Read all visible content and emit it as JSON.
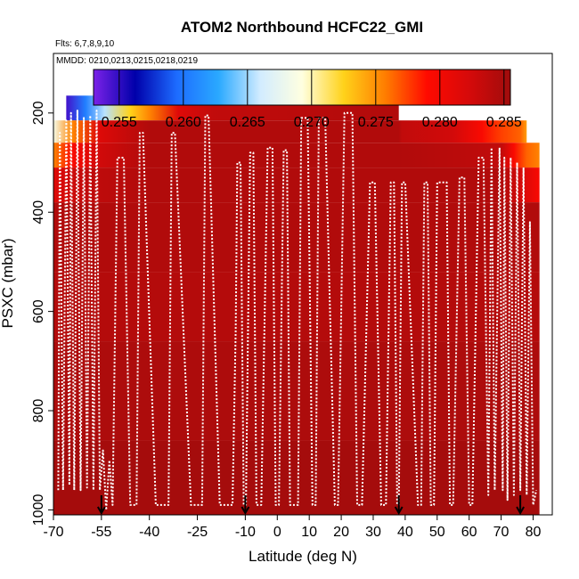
{
  "chart_data": {
    "type": "heatmap",
    "title": "ATOM2 Northbound HCFC22_GMI",
    "subtitle": "Flts: 6,7,8,9,10",
    "annotation": "MMDD: 0210,0213,0215,0218,0219",
    "xlabel": "Latitude (deg N)",
    "ylabel": "PSXC (mbar)",
    "xlim": [
      -70,
      86
    ],
    "ylim": [
      1010,
      80
    ],
    "y_reversed": true,
    "xticks": [
      -70,
      -55,
      -40,
      -25,
      -10,
      0,
      10,
      20,
      30,
      40,
      50,
      60,
      70,
      80
    ],
    "xtick_labels": [
      "-70",
      "-55",
      "-40",
      "-25",
      "-10",
      "0",
      "10",
      "20",
      "30",
      "40",
      "50",
      "60",
      "70",
      "80"
    ],
    "yticks": [
      200,
      400,
      600,
      800,
      1000
    ],
    "ytick_labels": [
      "200",
      "400",
      "600",
      "800",
      "1000"
    ],
    "colorbar": {
      "min": 0.253,
      "max": 0.2855,
      "ticks": [
        0.255,
        0.26,
        0.265,
        0.27,
        0.275,
        0.28,
        0.285
      ],
      "tick_labels": [
        "0.255",
        "0.260",
        "0.265",
        "0.270",
        "0.275",
        "0.280",
        "0.285"
      ],
      "colors": [
        "#7b22e8",
        "#0000aa",
        "#1d6cff",
        "#2aa9ff",
        "#d2ecff",
        "#ffffe0",
        "#ffd21a",
        "#ff7d00",
        "#ff0a00",
        "#d60a0a",
        "#a00c0c"
      ]
    },
    "panels": [
      {
        "x": [
          -66,
          38
        ],
        "p": [
          165,
          215
        ],
        "gradient": [
          [
            -66,
            0.2545
          ],
          [
            -60,
            0.2605
          ],
          [
            -54,
            0.2655
          ],
          [
            -46,
            0.2725
          ],
          [
            -40,
            0.2755
          ],
          [
            -31,
            0.2815
          ],
          [
            -20,
            0.2835
          ],
          [
            38,
            0.2845
          ]
        ]
      },
      {
        "x": [
          -70,
          78
        ],
        "p": [
          215,
          260
        ],
        "gradient": [
          [
            -70,
            0.2685
          ],
          [
            -64,
            0.2755
          ],
          [
            -56,
            0.2815
          ],
          [
            -40,
            0.2845
          ],
          [
            38,
            0.2845
          ],
          [
            39,
            0.2835
          ],
          [
            55,
            0.2825
          ],
          [
            64,
            0.2795
          ],
          [
            70,
            0.2775
          ],
          [
            76,
            0.2765
          ],
          [
            78,
            0.2745
          ]
        ]
      },
      {
        "x": [
          -70,
          82
        ],
        "p": [
          260,
          310
        ],
        "gradient": [
          [
            -70,
            0.2755
          ],
          [
            -64,
            0.2795
          ],
          [
            -56,
            0.2825
          ],
          [
            -40,
            0.2845
          ],
          [
            38,
            0.2845
          ],
          [
            70,
            0.2835
          ],
          [
            74,
            0.2795
          ],
          [
            78,
            0.2765
          ],
          [
            82,
            0.2755
          ]
        ]
      },
      {
        "x": [
          -70,
          82
        ],
        "p": [
          310,
          380
        ],
        "gradient": [
          [
            -70,
            0.2815
          ],
          [
            -60,
            0.2835
          ],
          [
            -40,
            0.2845
          ],
          [
            70,
            0.2845
          ],
          [
            78,
            0.2815
          ],
          [
            82,
            0.2795
          ]
        ]
      },
      {
        "x": [
          -70,
          82
        ],
        "p": [
          380,
          520
        ],
        "value": 0.2845
      },
      {
        "x": [
          -70,
          82
        ],
        "p": [
          520,
          660
        ],
        "value": 0.2843
      },
      {
        "x": [
          -70,
          82
        ],
        "p": [
          660,
          860
        ],
        "value": 0.2847
      },
      {
        "x": [
          -70,
          82
        ],
        "p": [
          860,
          1010
        ],
        "value": 0.2852
      }
    ],
    "flight_track": {
      "color": "#ffffff",
      "lat": [
        -68.5,
        -68,
        -67,
        -66,
        -65,
        -64.5,
        -63.5,
        -62.5,
        -61.5,
        -60.5,
        -59.5,
        -58.5,
        -57.5,
        -56.5,
        -55.5,
        -54.5,
        -53.5,
        -52.5,
        -51.5,
        -50,
        -48,
        -46,
        -44,
        -43,
        -42,
        -38,
        -34,
        -33,
        -32,
        -27,
        -23.5,
        -22.5,
        -21.5,
        -18,
        -14,
        -13,
        -12.5,
        -11.5,
        -10.5,
        -9.8,
        -8.5,
        -7.5,
        -6.5,
        -5,
        -3,
        -1.5,
        -0.5,
        0.5,
        2,
        3,
        4,
        6.5,
        7.5,
        9.5,
        11,
        12,
        13,
        15,
        18,
        19,
        21,
        23.5,
        25,
        26.5,
        29,
        30.5,
        32.5,
        34,
        35.5,
        36.5,
        37.5,
        38,
        39,
        40,
        44,
        45,
        46,
        47,
        48,
        49,
        50,
        53,
        54,
        55,
        57,
        58.5,
        60,
        61,
        63,
        64.5,
        66,
        67,
        68,
        69.5,
        70.5,
        71,
        72,
        73,
        74,
        75,
        76,
        77,
        78,
        79,
        80,
        81
      ],
      "psxc": [
        960,
        240,
        960,
        215,
        950,
        200,
        960,
        195,
        960,
        210,
        955,
        205,
        960,
        195,
        960,
        880,
        1000,
        900,
        990,
        290,
        290,
        990,
        990,
        240,
        240,
        990,
        990,
        240,
        240,
        990,
        990,
        205,
        205,
        990,
        990,
        640,
        300,
        300,
        990,
        990,
        280,
        280,
        990,
        990,
        270,
        270,
        990,
        990,
        275,
        275,
        990,
        990,
        210,
        210,
        990,
        990,
        210,
        210,
        990,
        990,
        200,
        200,
        990,
        990,
        340,
        340,
        990,
        990,
        340,
        340,
        990,
        990,
        340,
        340,
        990,
        990,
        340,
        340,
        990,
        990,
        340,
        340,
        990,
        990,
        330,
        330,
        990,
        990,
        290,
        290,
        970,
        270,
        960,
        270,
        960,
        290,
        980,
        290,
        970,
        300,
        960,
        310,
        970,
        420,
        990,
        960
      ]
    },
    "arrows_lat": [
      -55,
      -10,
      38,
      76
    ]
  }
}
